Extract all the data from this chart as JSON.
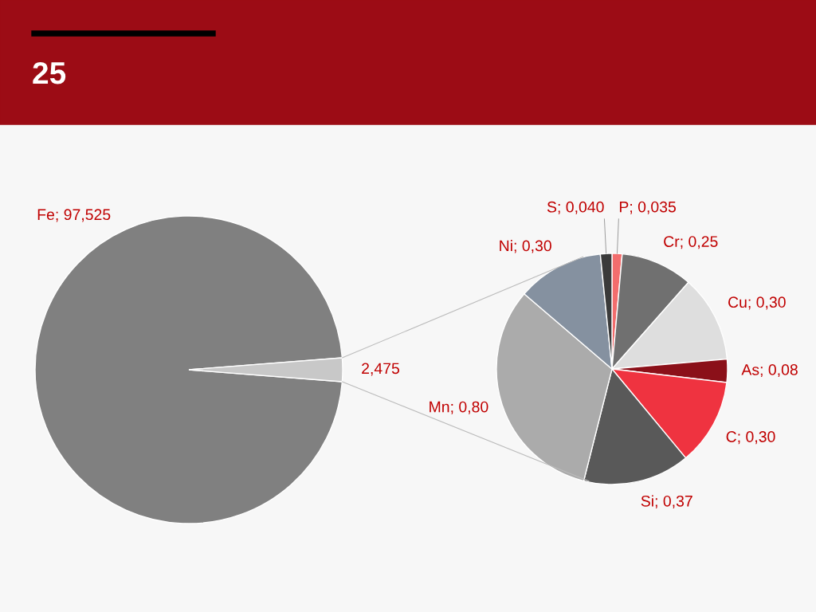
{
  "chart_data": [
    {
      "type": "pie",
      "title": "25",
      "categories": [
        "Fe",
        null
      ],
      "values": [
        97.525,
        2.475
      ],
      "colors": [
        "#808080",
        "#c8c8c8"
      ],
      "value_labels": [
        "97,525",
        "2,475"
      ]
    },
    {
      "type": "pie",
      "categories": [
        "P",
        "Cr",
        "Cu",
        "As",
        "C",
        "Si",
        "Mn",
        "Ni",
        "S"
      ],
      "values": [
        0.035,
        0.25,
        0.3,
        0.08,
        0.3,
        0.37,
        0.8,
        0.3,
        0.04
      ],
      "colors": [
        "#f26d6d",
        "#707070",
        "#dedede",
        "#8b1019",
        "#ef3340",
        "#595959",
        "#ababab",
        "#8591a0",
        "#3a3a3a"
      ],
      "value_labels": [
        "0,035",
        "0,25",
        "0,30",
        "0,08",
        "0,30",
        "0,37",
        "0,80",
        "0,30",
        "0,040"
      ]
    }
  ]
}
